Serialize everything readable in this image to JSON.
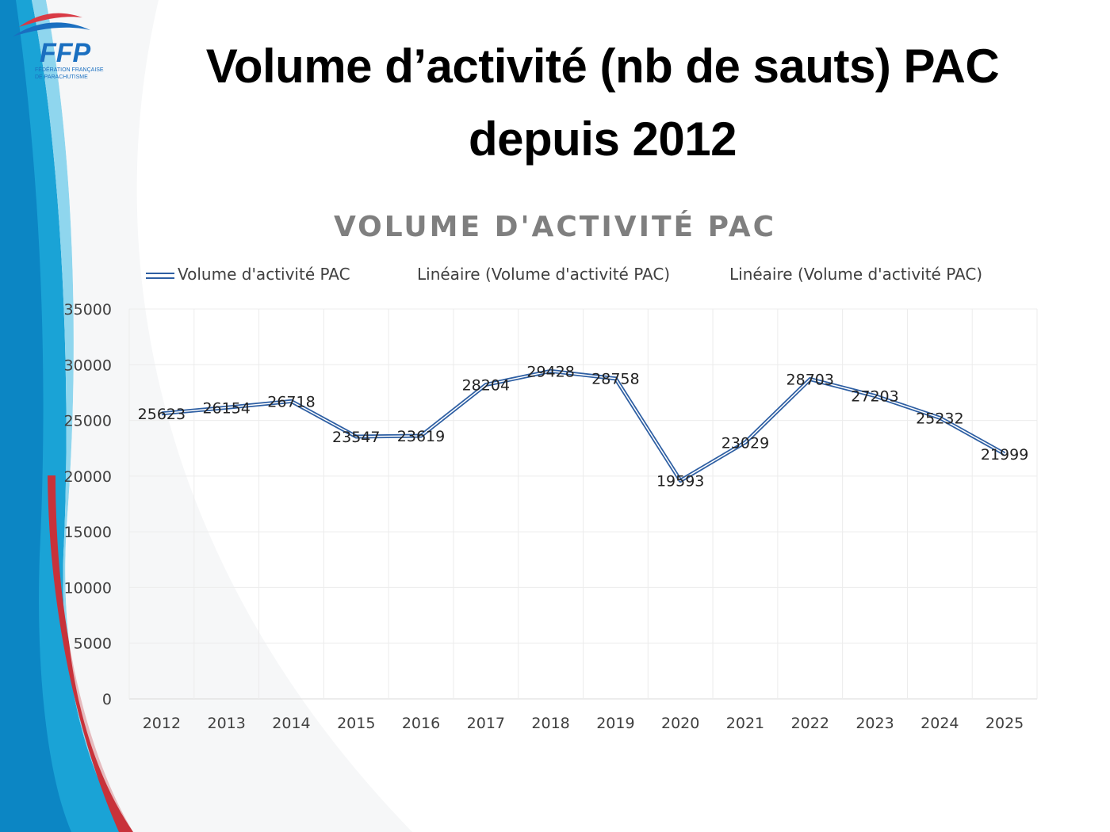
{
  "slide_title_line1": "Volume d’activité (nb de sauts) PAC",
  "slide_title_line2": "depuis 2012",
  "logo": {
    "text": "FFP",
    "subtitle": "FÉDÉRATION FRANÇAISE DE PARACHUTISME"
  },
  "chart_data": {
    "type": "line",
    "title": "VOLUME D'ACTIVITÉ PAC",
    "categories": [
      "2012",
      "2013",
      "2014",
      "2015",
      "2016",
      "2017",
      "2018",
      "2019",
      "2020",
      "2021",
      "2022",
      "2023",
      "2024",
      "2025"
    ],
    "series": [
      {
        "name": "Volume d'activité PAC",
        "values": [
          25623,
          26154,
          26718,
          23547,
          23619,
          28204,
          29428,
          28758,
          19593,
          23029,
          28703,
          27203,
          25232,
          21999
        ],
        "color": "#2e5fa3"
      }
    ],
    "legend": [
      "Volume d'activité PAC",
      "Linéaire (Volume d'activité PAC)",
      "Linéaire (Volume d'activité PAC)"
    ],
    "legend_position": "top",
    "ylim": [
      0,
      35000
    ],
    "yticks": [
      0,
      5000,
      10000,
      15000,
      20000,
      25000,
      30000,
      35000
    ],
    "grid": true,
    "xlabel": "",
    "ylabel": ""
  }
}
